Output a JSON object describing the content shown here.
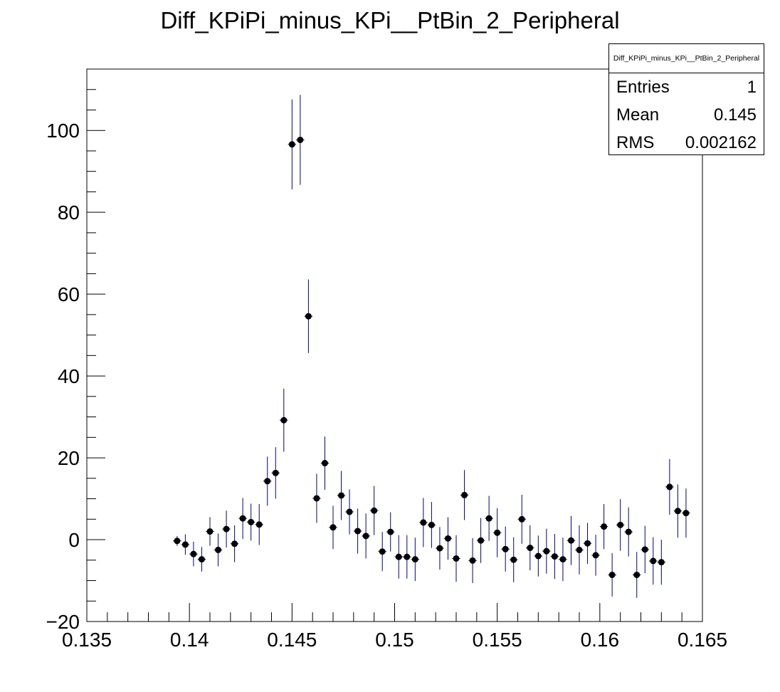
{
  "title": "Diff_KPiPi_minus_KPi__PtBin_2_Peripheral",
  "stats": {
    "name": "Diff_KPiPi_minus_KPi__PtBin_2_Peripheral",
    "rows": [
      {
        "key": "Entries",
        "value": "1"
      },
      {
        "key": "Mean",
        "value": "0.145"
      },
      {
        "key": "RMS",
        "value": "0.002162"
      }
    ]
  },
  "colors": {
    "marker": "#000000",
    "error_bar": "#000080",
    "axis": "#000000"
  },
  "chart_data": {
    "type": "scatter",
    "title": "Diff_KPiPi_minus_KPi__PtBin_2_Peripheral",
    "xlabel": "",
    "ylabel": "",
    "xlim": [
      0.135,
      0.165
    ],
    "ylim": [
      -20,
      115
    ],
    "x_ticks": [
      "0.135",
      "0.14",
      "0.145",
      "0.15",
      "0.155",
      "0.16",
      "0.165"
    ],
    "y_ticks": [
      "−20",
      "0",
      "20",
      "40",
      "60",
      "80",
      "100"
    ],
    "grid": false,
    "legend": "top-right",
    "series": [
      {
        "bin_width": 0.0004,
        "points": [
          {
            "x": 0.1394,
            "y": -0.3,
            "err": 1.2
          },
          {
            "x": 0.1398,
            "y": -1.2,
            "err": 2.5
          },
          {
            "x": 0.1402,
            "y": -3.5,
            "err": 3.0
          },
          {
            "x": 0.1406,
            "y": -4.8,
            "err": 3.0
          },
          {
            "x": 0.141,
            "y": 2.0,
            "err": 3.5
          },
          {
            "x": 0.1414,
            "y": -2.5,
            "err": 4.0
          },
          {
            "x": 0.1418,
            "y": 2.6,
            "err": 4.5
          },
          {
            "x": 0.1422,
            "y": -1.0,
            "err": 4.5
          },
          {
            "x": 0.1426,
            "y": 5.2,
            "err": 5.0
          },
          {
            "x": 0.143,
            "y": 4.3,
            "err": 4.5
          },
          {
            "x": 0.1434,
            "y": 3.7,
            "err": 5.0
          },
          {
            "x": 0.1438,
            "y": 14.3,
            "err": 6.0
          },
          {
            "x": 0.1442,
            "y": 16.3,
            "err": 6.3
          },
          {
            "x": 0.1446,
            "y": 29.2,
            "err": 7.7
          },
          {
            "x": 0.145,
            "y": 96.6,
            "err": 11.0
          },
          {
            "x": 0.1454,
            "y": 97.7,
            "err": 11.0
          },
          {
            "x": 0.1458,
            "y": 54.6,
            "err": 9.0
          },
          {
            "x": 0.1462,
            "y": 10.1,
            "err": 6.0
          },
          {
            "x": 0.1466,
            "y": 18.7,
            "err": 6.5
          },
          {
            "x": 0.147,
            "y": 3.0,
            "err": 5.3
          },
          {
            "x": 0.1474,
            "y": 10.8,
            "err": 6.0
          },
          {
            "x": 0.1478,
            "y": 6.8,
            "err": 5.5
          },
          {
            "x": 0.1482,
            "y": 2.1,
            "err": 5.5
          },
          {
            "x": 0.1486,
            "y": 0.9,
            "err": 5.5
          },
          {
            "x": 0.149,
            "y": 7.1,
            "err": 6.0
          },
          {
            "x": 0.1494,
            "y": -2.9,
            "err": 4.8
          },
          {
            "x": 0.1498,
            "y": 1.9,
            "err": 4.8
          },
          {
            "x": 0.1502,
            "y": -4.2,
            "err": 5.3
          },
          {
            "x": 0.1506,
            "y": -4.2,
            "err": 5.3
          },
          {
            "x": 0.151,
            "y": -4.8,
            "err": 5.3
          },
          {
            "x": 0.1514,
            "y": 4.2,
            "err": 6.0
          },
          {
            "x": 0.1518,
            "y": 3.6,
            "err": 5.6
          },
          {
            "x": 0.1522,
            "y": -2.1,
            "err": 5.2
          },
          {
            "x": 0.1526,
            "y": 0.3,
            "err": 5.2
          },
          {
            "x": 0.153,
            "y": -4.6,
            "err": 5.7
          },
          {
            "x": 0.1534,
            "y": 10.9,
            "err": 6.1
          },
          {
            "x": 0.1538,
            "y": -5.1,
            "err": 5.5
          },
          {
            "x": 0.1542,
            "y": -0.2,
            "err": 5.5
          },
          {
            "x": 0.1546,
            "y": 5.2,
            "err": 5.5
          },
          {
            "x": 0.155,
            "y": 1.7,
            "err": 6.0
          },
          {
            "x": 0.1554,
            "y": -2.3,
            "err": 5.5
          },
          {
            "x": 0.1558,
            "y": -4.9,
            "err": 5.5
          },
          {
            "x": 0.1562,
            "y": 5.0,
            "err": 6.0
          },
          {
            "x": 0.1566,
            "y": -2.0,
            "err": 5.5
          },
          {
            "x": 0.157,
            "y": -4.0,
            "err": 5.0
          },
          {
            "x": 0.1574,
            "y": -2.8,
            "err": 5.5
          },
          {
            "x": 0.1578,
            "y": -4.1,
            "err": 5.5
          },
          {
            "x": 0.1582,
            "y": -4.8,
            "err": 5.3
          },
          {
            "x": 0.1586,
            "y": -0.2,
            "err": 6.0
          },
          {
            "x": 0.159,
            "y": -2.5,
            "err": 6.0
          },
          {
            "x": 0.1594,
            "y": -0.9,
            "err": 5.0
          },
          {
            "x": 0.1598,
            "y": -3.8,
            "err": 5.0
          },
          {
            "x": 0.1602,
            "y": 3.2,
            "err": 5.5
          },
          {
            "x": 0.1606,
            "y": -8.6,
            "err": 5.3
          },
          {
            "x": 0.161,
            "y": 3.6,
            "err": 6.3
          },
          {
            "x": 0.1614,
            "y": 1.9,
            "err": 6.0
          },
          {
            "x": 0.1618,
            "y": -8.6,
            "err": 5.6
          },
          {
            "x": 0.1622,
            "y": -2.4,
            "err": 5.8
          },
          {
            "x": 0.1626,
            "y": -5.2,
            "err": 5.8
          },
          {
            "x": 0.163,
            "y": -5.5,
            "err": 5.5
          },
          {
            "x": 0.1634,
            "y": 12.9,
            "err": 6.8
          },
          {
            "x": 0.1638,
            "y": 7.0,
            "err": 6.5
          },
          {
            "x": 0.1642,
            "y": 6.5,
            "err": 6.0
          }
        ]
      }
    ]
  }
}
